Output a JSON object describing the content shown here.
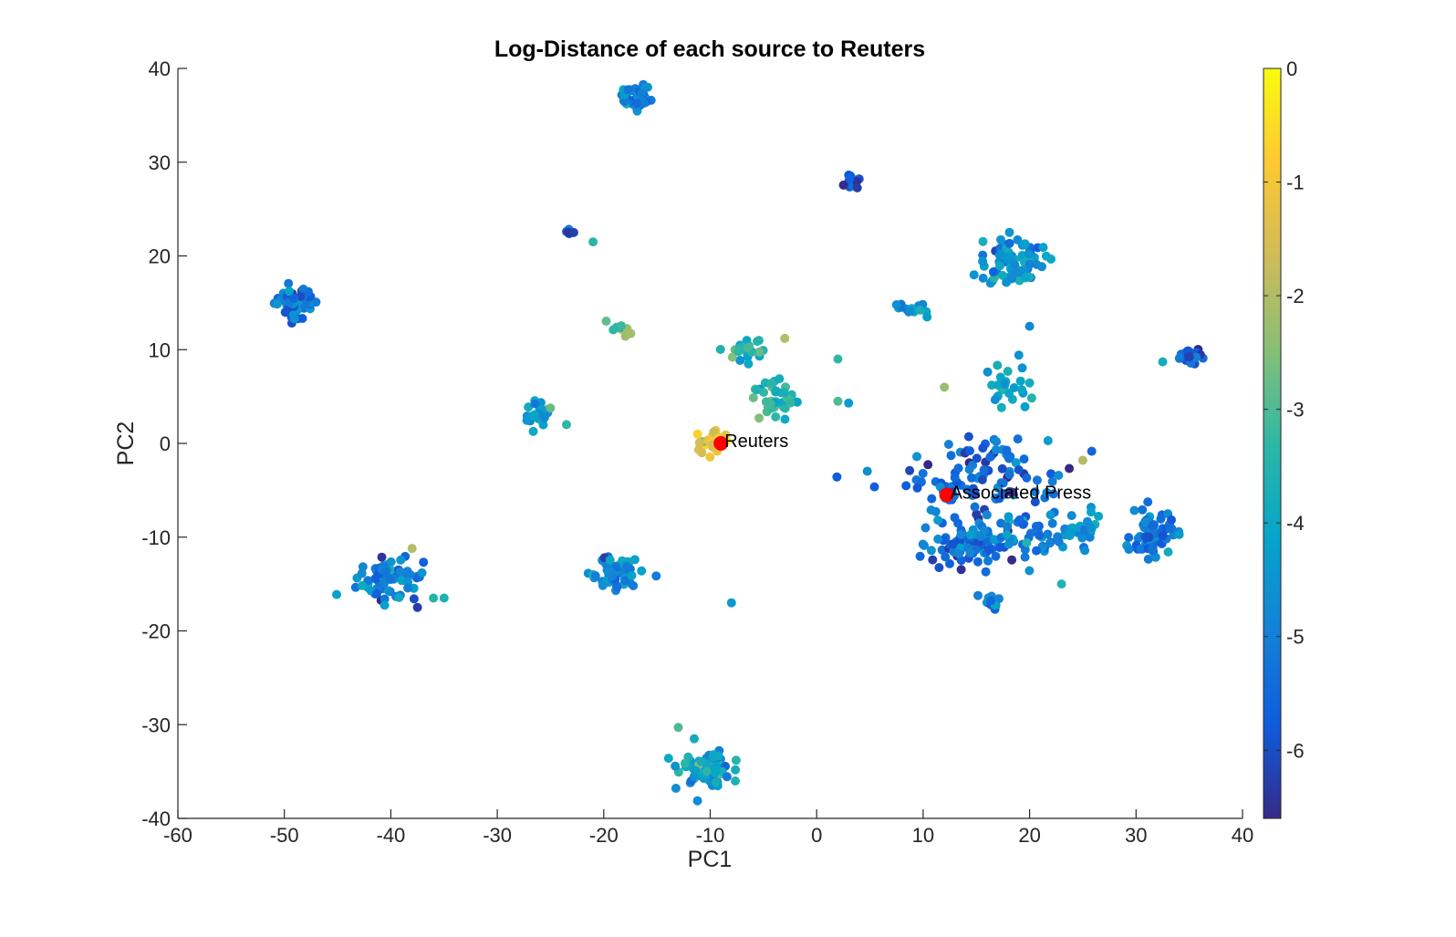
{
  "chart_data": {
    "type": "scatter",
    "title": "Log-Distance of each source to Reuters",
    "xlabel": "PC1",
    "ylabel": "PC2",
    "xlim": [
      -60,
      40
    ],
    "ylim": [
      -40,
      40
    ],
    "xticks": [
      "-60",
      "-50",
      "-40",
      "-30",
      "-20",
      "-10",
      "0",
      "10",
      "20",
      "30",
      "40"
    ],
    "yticks": [
      "-40",
      "-30",
      "-20",
      "-10",
      "0",
      "10",
      "20",
      "30",
      "40"
    ],
    "grid": false,
    "colorbar": {
      "label": "",
      "range": [
        -6.6,
        0
      ],
      "ticks": [
        "0",
        "-1",
        "-2",
        "-3",
        "-4",
        "-5",
        "-6"
      ],
      "colormap": "parula",
      "placement": "right"
    },
    "clusters": [
      {
        "cx": -49,
        "cy": 15,
        "n": 55,
        "sx": 1.3,
        "sy": 1.1,
        "c": -5.3
      },
      {
        "cx": -17,
        "cy": 37,
        "n": 40,
        "sx": 1.0,
        "sy": 0.9,
        "c": -4.9
      },
      {
        "cx": 3.5,
        "cy": 28,
        "n": 12,
        "sx": 0.6,
        "sy": 0.7,
        "c": -5.8
      },
      {
        "cx": -23.2,
        "cy": 22.5,
        "n": 8,
        "sx": 0.3,
        "sy": 0.3,
        "c": -5.9
      },
      {
        "cx": -18.5,
        "cy": 12.2,
        "n": 10,
        "sx": 0.8,
        "sy": 0.5,
        "c": -2.6
      },
      {
        "cx": -26,
        "cy": 3,
        "n": 30,
        "sx": 0.8,
        "sy": 1.0,
        "c": -4.3
      },
      {
        "cx": -40,
        "cy": -14.5,
        "n": 70,
        "sx": 2.0,
        "sy": 1.4,
        "c": -5.0
      },
      {
        "cx": -19,
        "cy": -13.8,
        "n": 65,
        "sx": 1.6,
        "sy": 1.2,
        "c": -4.8
      },
      {
        "cx": -10.5,
        "cy": -34.5,
        "n": 80,
        "sx": 1.6,
        "sy": 1.2,
        "c": -4.2
      },
      {
        "cx": -7,
        "cy": 10,
        "n": 25,
        "sx": 1.3,
        "sy": 0.9,
        "c": -3.6
      },
      {
        "cx": -3.5,
        "cy": 4.5,
        "n": 40,
        "sx": 1.8,
        "sy": 1.5,
        "c": -3.4
      },
      {
        "cx": -10,
        "cy": 0.3,
        "n": 30,
        "sx": 1.2,
        "sy": 0.8,
        "c": -1.2
      },
      {
        "cx": 18.5,
        "cy": 19.5,
        "n": 80,
        "sx": 2.0,
        "sy": 1.7,
        "c": -4.7
      },
      {
        "cx": 9,
        "cy": 14.3,
        "n": 15,
        "sx": 0.9,
        "sy": 0.5,
        "c": -4.5
      },
      {
        "cx": 35,
        "cy": 9.5,
        "n": 25,
        "sx": 0.8,
        "sy": 0.6,
        "c": -6.0
      },
      {
        "cx": 18,
        "cy": 6,
        "n": 25,
        "sx": 1.6,
        "sy": 2.0,
        "c": -4.0
      },
      {
        "cx": 16,
        "cy": -4,
        "n": 120,
        "sx": 5.0,
        "sy": 3.5,
        "c": -5.5
      },
      {
        "cx": 14,
        "cy": -11,
        "n": 70,
        "sx": 2.4,
        "sy": 1.5,
        "c": -5.3
      },
      {
        "cx": 20,
        "cy": -10,
        "n": 40,
        "sx": 2.5,
        "sy": 2.0,
        "c": -5.0
      },
      {
        "cx": 25,
        "cy": -9.5,
        "n": 30,
        "sx": 1.2,
        "sy": 1.0,
        "c": -4.7
      },
      {
        "cx": 31.5,
        "cy": -9.8,
        "n": 70,
        "sx": 1.3,
        "sy": 1.6,
        "c": -5.2
      },
      {
        "cx": 16.5,
        "cy": -16.7,
        "n": 10,
        "sx": 0.6,
        "sy": 0.5,
        "c": -5.0
      }
    ],
    "extra_points": [
      {
        "x": -21,
        "y": 21.5,
        "c": -3.4
      },
      {
        "x": 2,
        "y": 9,
        "c": -3.3
      },
      {
        "x": 2,
        "y": 4.5,
        "c": -3.0
      },
      {
        "x": 3,
        "y": 4.3,
        "c": -4.3
      },
      {
        "x": -8,
        "y": -17,
        "c": -4.4
      },
      {
        "x": -38,
        "y": -11.2,
        "c": -2.0
      },
      {
        "x": -37.5,
        "y": -17.5,
        "c": -6.3
      },
      {
        "x": -36,
        "y": -16.5,
        "c": -3.5
      },
      {
        "x": -35,
        "y": -16.5,
        "c": -3.6
      },
      {
        "x": -23.5,
        "y": 2,
        "c": -3.3
      },
      {
        "x": 32.5,
        "y": 8.7,
        "c": -3.8
      },
      {
        "x": 25,
        "y": -1.8,
        "c": -2.0
      },
      {
        "x": 23,
        "y": -15,
        "c": -3.5
      },
      {
        "x": 12,
        "y": 6,
        "c": -2.3
      },
      {
        "x": 20,
        "y": 12.5,
        "c": -4.8
      },
      {
        "x": -13,
        "y": -30.3,
        "c": -3.0
      },
      {
        "x": -11.5,
        "y": -31.5,
        "c": -3.8
      },
      {
        "x": -3,
        "y": 11.2,
        "c": -2.0
      }
    ],
    "highlighted": [
      {
        "label": "Reuters",
        "x": -9,
        "y": 0,
        "color": "#ff0000"
      },
      {
        "label": "Associated Press",
        "x": 12.2,
        "y": -5.5,
        "color": "#ff0000"
      }
    ]
  }
}
